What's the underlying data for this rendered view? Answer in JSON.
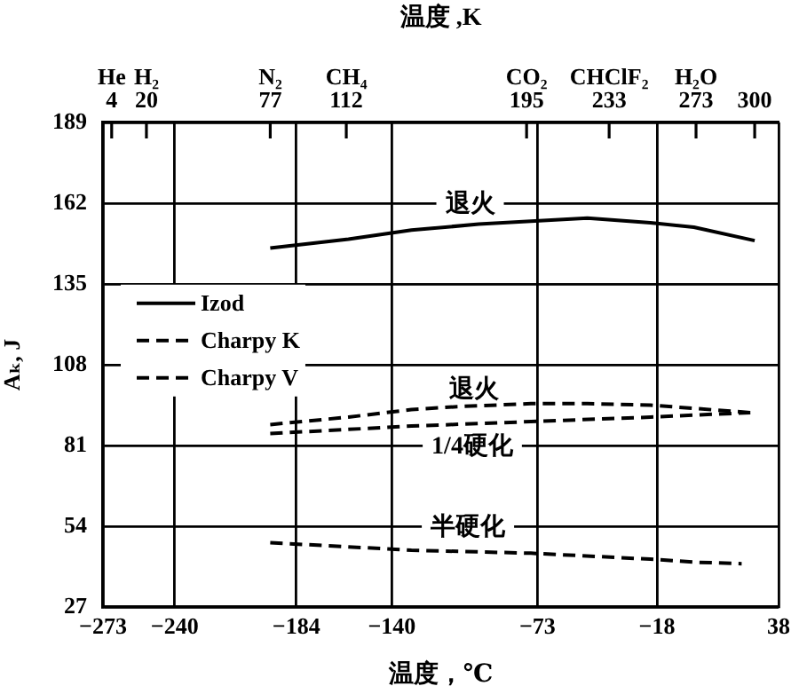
{
  "chart_data": {
    "type": "line",
    "xlabel": "温度，℃",
    "x2label": "温度 ,K",
    "ylabel": "Aₖ, J",
    "xlim": [
      -273,
      38
    ],
    "xticks": [
      -273,
      -240,
      -184,
      -140,
      -73,
      -18,
      38
    ],
    "x2lim": [
      0,
      311
    ],
    "x2ticks": [
      4,
      20,
      77,
      112,
      195,
      233,
      273,
      300
    ],
    "ylim": [
      27,
      189
    ],
    "yticks": [
      27,
      54,
      81,
      108,
      135,
      162,
      189
    ],
    "grid": true,
    "legend": "left",
    "series": [
      {
        "name": "Izod",
        "color": "#000000",
        "line_style": "solid",
        "x": [
          -196,
          -160,
          -131,
          -100,
          -76,
          -50,
          -21,
          -1,
          27
        ],
        "values": [
          147,
          150,
          153,
          155,
          156,
          157,
          155.5,
          154,
          149.5
        ]
      },
      {
        "name": "Charpy K",
        "color": "#000000",
        "line_style": "dashed",
        "x": [
          -196,
          -160,
          -131,
          -110,
          -76,
          -50,
          -21,
          25
        ],
        "values": [
          88,
          90.5,
          93,
          94,
          95,
          95,
          94.5,
          92
        ]
      },
      {
        "name": "Charpy V",
        "color": "#000000",
        "line_style": "dashed",
        "x": [
          -196,
          -131,
          -76,
          -21,
          25
        ],
        "values": [
          85,
          87.5,
          89,
          90.5,
          92
        ]
      },
      {
        "color": "#000000",
        "line_style": "dashed",
        "x": [
          -196,
          -131,
          -76,
          -21,
          -1,
          21
        ],
        "values": [
          48.5,
          46,
          45,
          43,
          42,
          41.5
        ]
      }
    ],
    "annotations": [
      {
        "text": "退火",
        "x": -104,
        "y": 155
      },
      {
        "text": "退火",
        "x": -102,
        "y": 94
      },
      {
        "text": "1/4硬化",
        "x": -103,
        "y": 88
      },
      {
        "text": "半硬化",
        "x": -105,
        "y": 45.5
      },
      "He",
      "H₂",
      "N₂",
      "CH₄",
      "CO₂",
      "CHClF₂",
      "H₂O"
    ]
  }
}
